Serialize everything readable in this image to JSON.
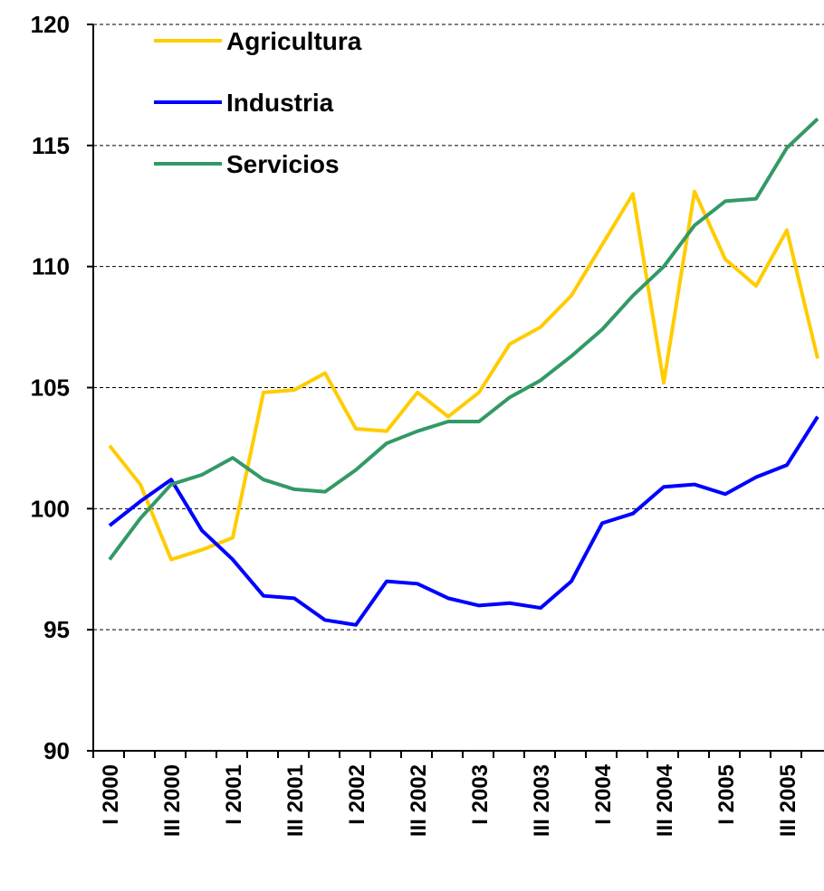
{
  "chart_data": {
    "type": "line",
    "categories": [
      "I 2000",
      null,
      "III 2000",
      null,
      "I 2001",
      null,
      "III 2001",
      null,
      "I 2002",
      null,
      "III 2002",
      null,
      "I 2003",
      null,
      "III 2003",
      null,
      "I 2004",
      null,
      "III 2004",
      null,
      "I 2005",
      null,
      "III 2005",
      null
    ],
    "series": [
      {
        "name": "Agricultura",
        "color": "#ffcc00",
        "values": [
          102.6,
          101.0,
          97.9,
          98.3,
          98.8,
          104.8,
          104.9,
          105.6,
          103.3,
          103.2,
          104.8,
          103.8,
          104.8,
          106.8,
          107.5,
          108.8,
          110.9,
          113.0,
          105.2,
          113.1,
          110.3,
          109.2,
          111.5,
          106.2
        ]
      },
      {
        "name": "Industria",
        "color": "#0000ff",
        "values": [
          99.3,
          100.3,
          101.2,
          99.1,
          97.9,
          96.4,
          96.3,
          95.4,
          95.2,
          97.0,
          96.9,
          96.3,
          96.0,
          96.1,
          95.9,
          97.0,
          99.4,
          99.8,
          100.9,
          101.0,
          100.6,
          101.3,
          101.8,
          103.8
        ]
      },
      {
        "name": "Servicios",
        "color": "#339966",
        "values": [
          97.9,
          99.6,
          101.0,
          101.4,
          102.1,
          101.2,
          100.8,
          100.7,
          101.6,
          102.7,
          103.2,
          103.6,
          103.6,
          104.6,
          105.3,
          106.3,
          107.4,
          108.8,
          110.0,
          111.7,
          112.7,
          112.8,
          114.9,
          116.1
        ]
      }
    ],
    "ylim": [
      90,
      120
    ],
    "yticks": [
      90,
      95,
      100,
      105,
      110,
      115,
      120
    ],
    "grid": true,
    "legend": "top-left"
  }
}
